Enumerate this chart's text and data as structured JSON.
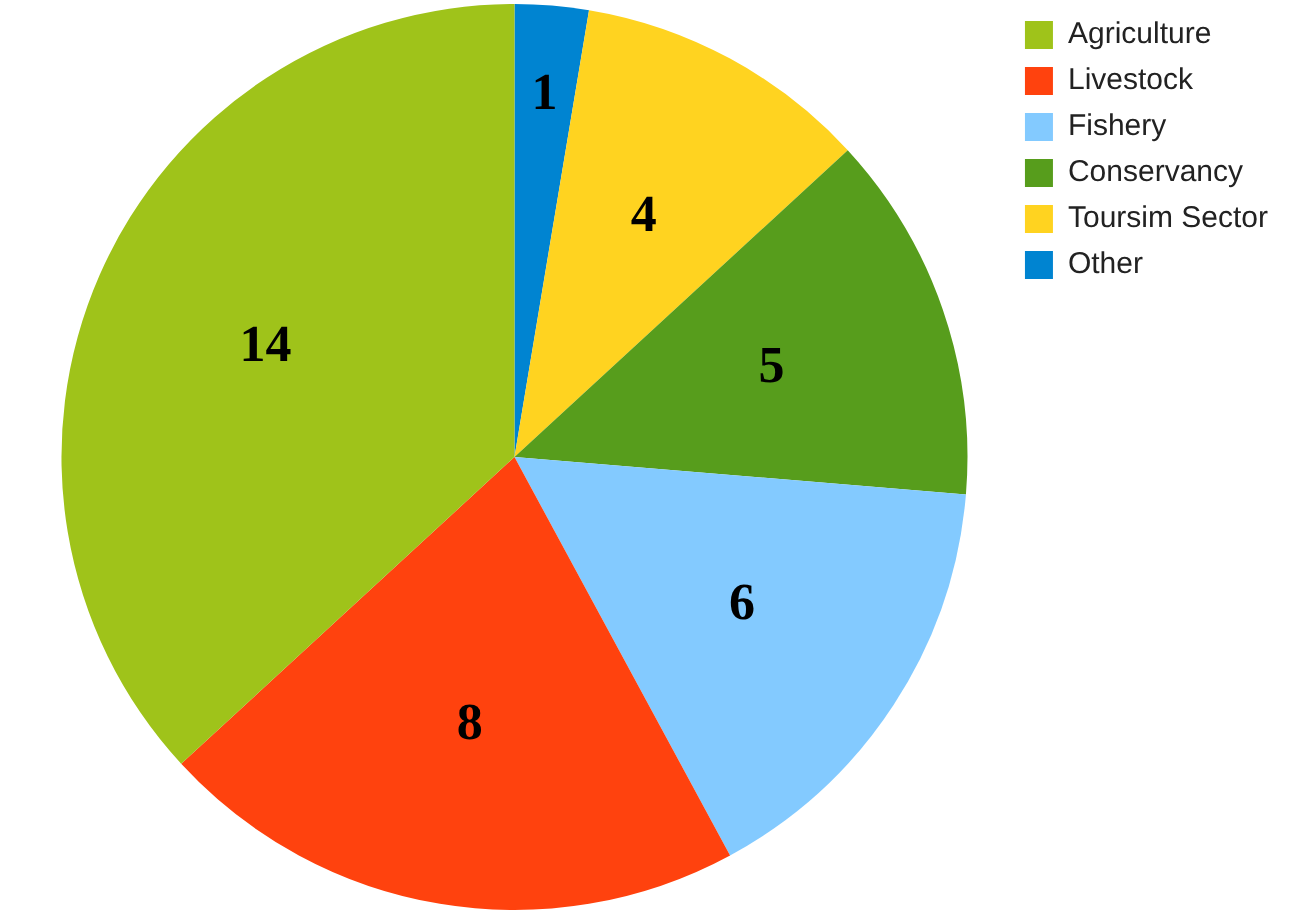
{
  "chart_data": {
    "type": "pie",
    "categories": [
      "Agriculture",
      "Livestock",
      "Fishery",
      "Conservancy",
      "Toursim Sector",
      "Other"
    ],
    "values": [
      14,
      8,
      6,
      5,
      4,
      1
    ],
    "colors": [
      "#9fc31a",
      "#ff420e",
      "#83caff",
      "#579d1c",
      "#ffd320",
      "#0084d1"
    ],
    "data_labels": true,
    "legend": "top right"
  }
}
